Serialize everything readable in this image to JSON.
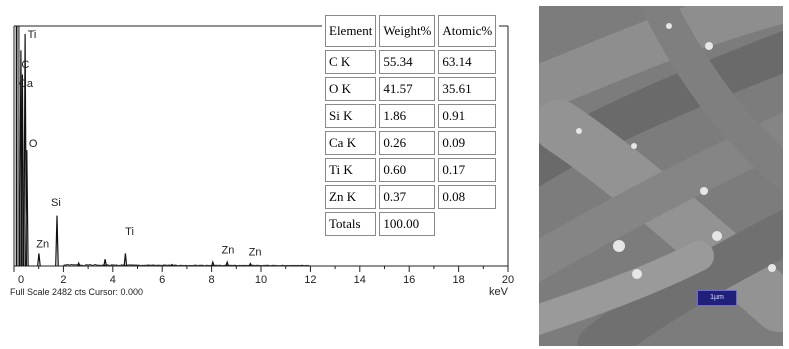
{
  "chart_data": {
    "type": "line",
    "xlabel": "keV",
    "xlim": [
      0,
      20
    ],
    "x_ticks": [
      0,
      2,
      4,
      6,
      8,
      10,
      12,
      14,
      16,
      18,
      20
    ],
    "footer": "Full Scale 2482 cts Cursor: 0.000",
    "peaks": [
      {
        "label": "Ti",
        "x": 0.45,
        "y": 2400,
        "label_x": 0.55,
        "label_y": 2360
      },
      {
        "label": "C",
        "x": 0.28,
        "y": 2230,
        "label_x": 0.3,
        "label_y": 2050
      },
      {
        "label": "Ca",
        "x": 0.34,
        "y": 1980,
        "label_x": 0.2,
        "label_y": 1850
      },
      {
        "label": "O",
        "x": 0.52,
        "y": 1200,
        "label_x": 0.6,
        "label_y": 1230
      },
      {
        "label": "Si",
        "x": 1.74,
        "y": 520,
        "label_x": 1.5,
        "label_y": 620
      },
      {
        "label": "Zn",
        "x": 1.01,
        "y": 130,
        "label_x": 0.9,
        "label_y": 190
      },
      {
        "label": "Ti",
        "x": 4.51,
        "y": 130,
        "label_x": 4.5,
        "label_y": 320
      },
      {
        "label": "Zn",
        "x": 8.63,
        "y": 40,
        "label_x": 8.4,
        "label_y": 130
      },
      {
        "label": "Zn",
        "x": 9.57,
        "y": 25,
        "label_x": 9.5,
        "label_y": 110
      }
    ],
    "extra_lines": [
      {
        "x": 0.12,
        "y": 2482
      },
      {
        "x": 0.2,
        "y": 2482
      },
      {
        "x": 0.09,
        "y": 2482
      }
    ],
    "minor_peaks": [
      {
        "x": 3.69,
        "y": 70
      },
      {
        "x": 2.62,
        "y": 30
      },
      {
        "x": 8.05,
        "y": 40
      },
      {
        "x": 6.4,
        "y": 15
      }
    ]
  },
  "table": {
    "headers": [
      "Element",
      "Weight%",
      "Atomic%"
    ],
    "rows": [
      [
        "C K",
        "55.34",
        "63.14"
      ],
      [
        "O K",
        "41.57",
        "35.61"
      ],
      [
        "Si K",
        "1.86",
        "0.91"
      ],
      [
        "Ca K",
        "0.26",
        "0.09"
      ],
      [
        "Ti K",
        "0.60",
        "0.17"
      ],
      [
        "Zn K",
        "0.37",
        "0.08"
      ],
      [
        "Totals",
        "100.00",
        ""
      ]
    ]
  },
  "micrograph": {
    "scale_label": "1µm",
    "background_color": "#7c7c7c"
  }
}
